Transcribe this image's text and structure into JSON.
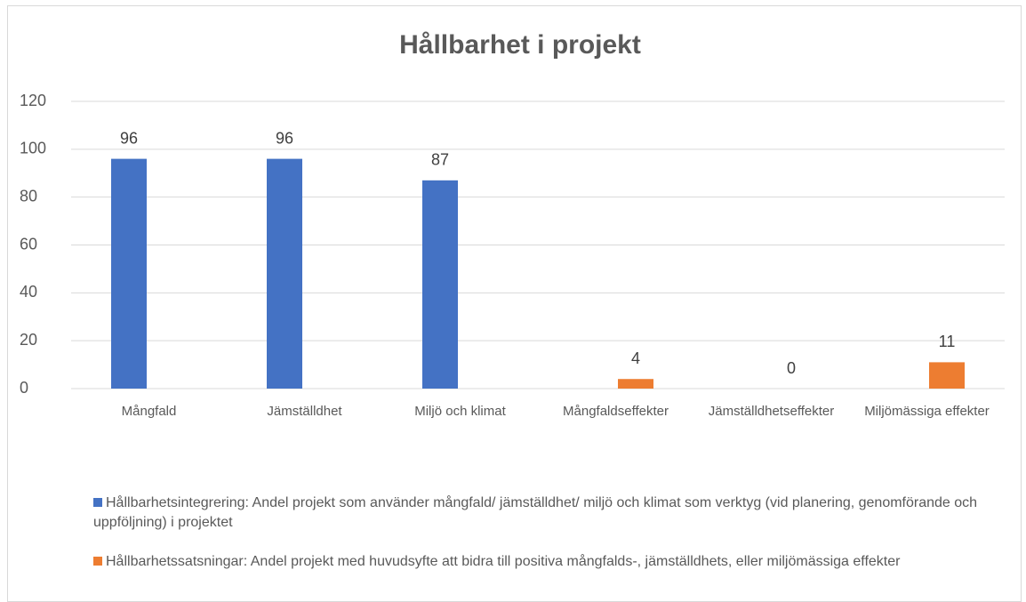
{
  "chart_data": {
    "type": "bar",
    "title": "Hållbarhet i projekt",
    "categories": [
      "Mångfald",
      "Jämställdhet",
      "Miljö och klimat",
      "Mångfaldseffekter",
      "Jämställdhetseffekter",
      "Miljömässiga effekter"
    ],
    "series": [
      {
        "name": "Hållbarhetsintegrering: Andel projekt som använder mångfald/ jämställdhet/ miljö och klimat som verktyg (vid planering, genomförande och uppföljning) i projektet",
        "color": "#4472c4",
        "values": [
          96,
          96,
          87,
          null,
          null,
          null
        ]
      },
      {
        "name": "Hållbarhetssatsningar: Andel projekt med huvudsyfte att bidra till positiva mångfalds-, jämställdhets, eller miljömässiga effekter",
        "color": "#ed7d31",
        "values": [
          null,
          null,
          null,
          4,
          0,
          11
        ]
      }
    ],
    "ylim": [
      0,
      120
    ],
    "yticks": [
      0,
      20,
      40,
      60,
      80,
      100,
      120
    ],
    "grid": true,
    "legend": "bottom"
  }
}
